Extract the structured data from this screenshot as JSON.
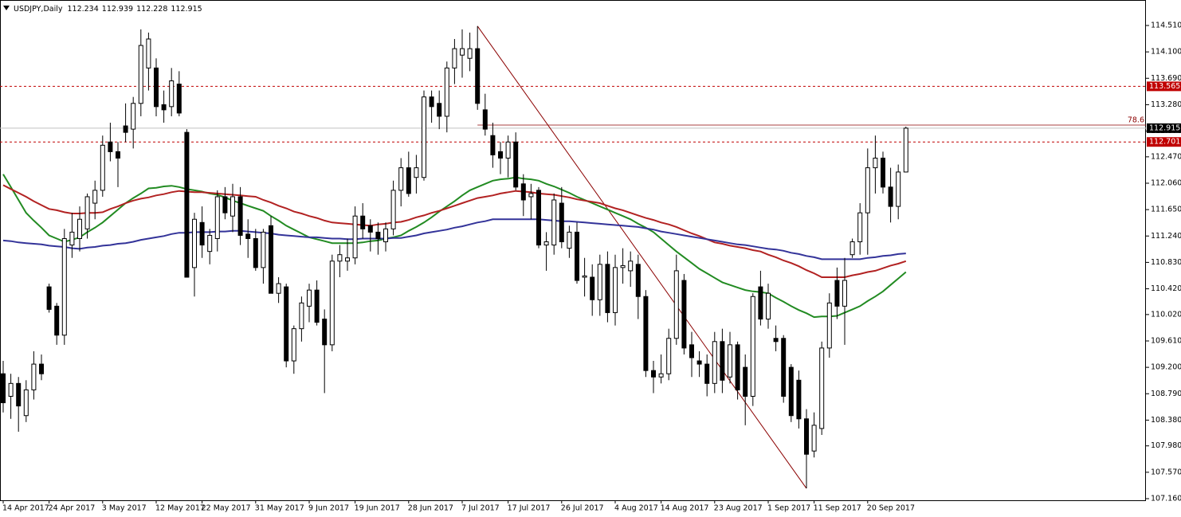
{
  "chart_data": {
    "type": "candlestick",
    "title": "USDJPY,Daily",
    "categories": [
      "14 Apr 2017",
      null,
      null,
      null,
      null,
      null,
      "24 Apr 2017",
      null,
      null,
      null,
      null,
      null,
      null,
      "3 May 2017",
      null,
      null,
      null,
      null,
      null,
      null,
      "12 May 2017",
      null,
      null,
      null,
      null,
      null,
      "22 May 2017",
      null,
      null,
      null,
      null,
      null,
      null,
      "31 May 2017",
      null,
      null,
      null,
      null,
      null,
      null,
      "9 Jun 2017",
      null,
      null,
      null,
      null,
      null,
      "19 Jun 2017",
      null,
      null,
      null,
      null,
      null,
      null,
      "28 Jun 2017",
      null,
      null,
      null,
      null,
      null,
      null,
      "7 Jul 2017",
      null,
      null,
      null,
      null,
      null,
      "17 Jul 2017",
      null,
      null,
      null,
      null,
      null,
      null,
      "26 Jul 2017",
      null,
      null,
      null,
      null,
      null,
      null,
      "4 Aug 2017",
      null,
      null,
      null,
      null,
      null,
      "14 Aug 2017",
      null,
      null,
      null,
      null,
      null,
      null,
      "23 Aug 2017",
      null,
      null,
      null,
      null,
      null,
      null,
      "1 Sep 2017",
      null,
      null,
      null,
      null,
      null,
      "11 Sep 2017",
      null,
      null,
      null,
      null,
      null,
      null,
      "20 Sep 2017",
      null,
      null,
      null,
      null,
      null
    ],
    "open": [
      109.1,
      108.75,
      108.95,
      108.45,
      108.85,
      109.25,
      110.45,
      110.15,
      109.7,
      111.1,
      111.2,
      111.35,
      111.75,
      111.95,
      112.7,
      112.55,
      112.95,
      112.9,
      113.3,
      113.85,
      113.85,
      113.28,
      113.25,
      113.6,
      112.85,
      110.75,
      111.45,
      111.0,
      111.2,
      111.85,
      111.55,
      111.85,
      111.27,
      111.2,
      110.75,
      111.4,
      110.35,
      110.45,
      109.3,
      109.8,
      110.15,
      110.4,
      109.95,
      109.55,
      110.85,
      110.85,
      110.9,
      111.55,
      111.4,
      111.3,
      111.15,
      111.35,
      111.95,
      112.3,
      112.15,
      112.15,
      113.4,
      113.3,
      113.1,
      113.85,
      114.05,
      114.0,
      114.15,
      113.2,
      112.8,
      112.55,
      112.45,
      112.7,
      112.05,
      111.85,
      111.95,
      111.1,
      111.1,
      111.75,
      111.05,
      111.3,
      110.6,
      110.6,
      110.25,
      110.8,
      110.05,
      110.75,
      110.7,
      110.8,
      110.3,
      109.15,
      109.05,
      109.1,
      109.65,
      110.55,
      109.55,
      109.3,
      109.25,
      108.95,
      109.6,
      109.05,
      109.55,
      109.2,
      108.75,
      110.45,
      109.95,
      109.65,
      109.65,
      109.2,
      109.0,
      108.4,
      107.9,
      108.25,
      109.5,
      110.55,
      110.15,
      110.95,
      111.15,
      111.6,
      112.3,
      112.45,
      112.0,
      111.7,
      112.234
    ],
    "high": [
      109.3,
      109.1,
      109.05,
      109.0,
      109.45,
      109.4,
      110.5,
      110.2,
      111.35,
      111.6,
      111.7,
      111.9,
      112.1,
      112.8,
      113.0,
      112.7,
      113.3,
      113.4,
      114.45,
      114.4,
      114.0,
      113.5,
      113.85,
      113.8,
      112.9,
      111.6,
      111.7,
      111.35,
      111.95,
      112.0,
      112.05,
      112.0,
      111.5,
      111.35,
      111.35,
      111.55,
      110.6,
      110.5,
      109.85,
      110.3,
      110.5,
      110.55,
      110.1,
      110.95,
      111.1,
      111.2,
      111.7,
      111.75,
      111.5,
      111.45,
      111.45,
      112.1,
      112.45,
      112.55,
      112.5,
      113.5,
      113.5,
      113.5,
      113.95,
      114.3,
      114.45,
      114.4,
      114.5,
      113.45,
      113.0,
      112.7,
      112.8,
      112.85,
      112.2,
      112.05,
      112.0,
      111.3,
      111.9,
      112.0,
      111.4,
      111.45,
      110.9,
      110.8,
      110.95,
      111.0,
      110.95,
      111.05,
      111.0,
      110.95,
      110.4,
      109.3,
      109.4,
      109.8,
      110.95,
      110.65,
      109.75,
      109.45,
      109.4,
      109.75,
      109.8,
      109.75,
      109.6,
      109.4,
      110.35,
      110.7,
      110.5,
      109.85,
      109.7,
      109.25,
      109.15,
      108.55,
      108.5,
      109.6,
      110.35,
      110.75,
      110.9,
      111.2,
      111.75,
      112.6,
      112.8,
      112.55,
      112.3,
      112.35,
      112.939
    ],
    "low": [
      108.5,
      108.4,
      108.2,
      108.35,
      108.7,
      109.0,
      110.05,
      109.55,
      109.55,
      110.9,
      111.0,
      111.2,
      111.5,
      111.85,
      112.4,
      112.0,
      112.7,
      112.6,
      113.1,
      113.5,
      113.1,
      113.0,
      113.1,
      113.1,
      110.6,
      110.3,
      110.9,
      110.8,
      111.0,
      111.5,
      111.3,
      111.1,
      110.9,
      110.7,
      110.5,
      110.35,
      110.2,
      109.2,
      109.1,
      109.6,
      109.9,
      109.85,
      108.8,
      109.45,
      110.6,
      110.7,
      110.8,
      111.2,
      111.0,
      110.95,
      111.0,
      111.25,
      111.7,
      111.85,
      111.9,
      112.1,
      113.0,
      112.9,
      112.85,
      113.6,
      113.7,
      113.8,
      113.2,
      112.8,
      112.3,
      112.2,
      112.15,
      111.95,
      111.55,
      111.5,
      111.05,
      110.7,
      110.95,
      111.05,
      110.9,
      110.5,
      110.3,
      110.0,
      110.0,
      109.9,
      109.85,
      110.5,
      110.45,
      109.95,
      109.05,
      108.8,
      108.95,
      109.0,
      109.55,
      109.4,
      109.05,
      109.05,
      108.75,
      108.8,
      108.8,
      108.95,
      108.7,
      108.3,
      108.6,
      109.85,
      109.8,
      109.45,
      108.65,
      108.35,
      108.25,
      107.32,
      107.8,
      108.15,
      109.35,
      109.95,
      109.55,
      110.9,
      110.95,
      110.95,
      111.9,
      111.9,
      111.45,
      111.5,
      112.228
    ],
    "close": [
      108.65,
      108.95,
      108.6,
      108.85,
      109.25,
      109.1,
      110.1,
      109.7,
      111.2,
      111.3,
      111.5,
      111.85,
      111.95,
      112.65,
      112.55,
      112.45,
      112.85,
      113.3,
      114.2,
      114.3,
      113.25,
      113.2,
      113.65,
      113.15,
      110.6,
      111.5,
      111.1,
      111.25,
      111.85,
      111.6,
      111.85,
      111.25,
      111.2,
      110.75,
      111.3,
      110.35,
      110.5,
      109.3,
      109.8,
      110.2,
      110.4,
      109.9,
      109.55,
      110.85,
      110.95,
      110.9,
      111.55,
      111.35,
      111.3,
      111.2,
      111.35,
      111.95,
      112.3,
      111.9,
      112.3,
      113.4,
      113.25,
      113.1,
      113.85,
      114.15,
      114.15,
      114.15,
      113.3,
      112.9,
      112.5,
      112.45,
      112.7,
      112.0,
      111.8,
      111.9,
      111.1,
      111.15,
      111.8,
      111.15,
      111.3,
      110.55,
      110.62,
      110.25,
      110.8,
      110.05,
      110.75,
      110.78,
      110.85,
      110.3,
      109.15,
      109.05,
      109.1,
      109.65,
      110.7,
      109.5,
      109.35,
      109.25,
      108.95,
      109.6,
      109.0,
      109.55,
      108.85,
      108.75,
      110.3,
      109.95,
      110.35,
      109.6,
      108.75,
      108.45,
      108.4,
      107.85,
      108.3,
      109.5,
      110.2,
      110.15,
      110.55,
      111.15,
      111.6,
      112.3,
      112.45,
      112.0,
      111.7,
      112.234,
      112.915
    ],
    "moving_averages": [
      {
        "color": "#228b22",
        "values": [
          112.2,
          112.0,
          111.8,
          111.6,
          111.48,
          111.37,
          111.25,
          111.2,
          111.15,
          111.18,
          111.22,
          111.3,
          111.37,
          111.45,
          111.55,
          111.65,
          111.75,
          111.83,
          111.9,
          111.98,
          111.99,
          112.01,
          112.02,
          112.0,
          111.97,
          111.95,
          111.93,
          111.9,
          111.88,
          111.84,
          111.79,
          111.75,
          111.71,
          111.67,
          111.63,
          111.55,
          111.48,
          111.4,
          111.34,
          111.28,
          111.22,
          111.19,
          111.16,
          111.13,
          111.13,
          111.13,
          111.13,
          111.14,
          111.16,
          111.17,
          111.2,
          111.22,
          111.25,
          111.32,
          111.38,
          111.45,
          111.53,
          111.62,
          111.7,
          111.78,
          111.87,
          111.95,
          112.0,
          112.05,
          112.1,
          112.12,
          112.13,
          112.15,
          112.13,
          112.12,
          112.1,
          112.05,
          112.01,
          111.96,
          111.91,
          111.85,
          111.8,
          111.75,
          111.7,
          111.65,
          111.6,
          111.55,
          111.5,
          111.43,
          111.37,
          111.3,
          111.2,
          111.1,
          111.0,
          110.91,
          110.82,
          110.73,
          110.66,
          110.59,
          110.52,
          110.48,
          110.44,
          110.4,
          110.38,
          110.37,
          110.35,
          110.28,
          110.22,
          110.15,
          110.09,
          110.04,
          109.98,
          109.99,
          109.99,
          110.0,
          110.05,
          110.1,
          110.15,
          110.23,
          110.3,
          110.38,
          110.48,
          110.58,
          110.68
        ]
      },
      {
        "color": "#b22222",
        "values": [
          112.03,
          111.97,
          111.91,
          111.85,
          111.78,
          111.72,
          111.66,
          111.64,
          111.61,
          111.59,
          111.59,
          111.6,
          111.6,
          111.61,
          111.66,
          111.7,
          111.75,
          111.79,
          111.82,
          111.84,
          111.87,
          111.89,
          111.92,
          111.94,
          111.93,
          111.92,
          111.92,
          111.91,
          111.9,
          111.89,
          111.88,
          111.87,
          111.86,
          111.85,
          111.8,
          111.76,
          111.71,
          111.67,
          111.62,
          111.59,
          111.55,
          111.52,
          111.48,
          111.45,
          111.44,
          111.43,
          111.42,
          111.41,
          111.4,
          111.42,
          111.43,
          111.45,
          111.46,
          111.49,
          111.53,
          111.56,
          111.6,
          111.63,
          111.67,
          111.71,
          111.75,
          111.79,
          111.83,
          111.85,
          111.87,
          111.9,
          111.92,
          111.94,
          111.93,
          111.92,
          111.9,
          111.89,
          111.88,
          111.86,
          111.84,
          111.81,
          111.79,
          111.77,
          111.75,
          111.71,
          111.67,
          111.64,
          111.6,
          111.56,
          111.52,
          111.49,
          111.45,
          111.42,
          111.38,
          111.33,
          111.28,
          111.24,
          111.19,
          111.14,
          111.12,
          111.09,
          111.07,
          111.05,
          111.02,
          111.0,
          110.95,
          110.91,
          110.86,
          110.82,
          110.77,
          110.71,
          110.66,
          110.6,
          110.6,
          110.6,
          110.6,
          110.63,
          110.65,
          110.68,
          110.7,
          110.74,
          110.78,
          110.81,
          110.85
        ]
      },
      {
        "color": "#333399",
        "values": [
          111.17,
          111.16,
          111.14,
          111.13,
          111.12,
          111.11,
          111.09,
          111.08,
          111.07,
          111.05,
          111.04,
          111.06,
          111.07,
          111.09,
          111.1,
          111.12,
          111.13,
          111.15,
          111.18,
          111.2,
          111.22,
          111.24,
          111.27,
          111.29,
          111.29,
          111.3,
          111.3,
          111.3,
          111.31,
          111.31,
          111.32,
          111.32,
          111.31,
          111.3,
          111.29,
          111.28,
          111.26,
          111.25,
          111.24,
          111.23,
          111.22,
          111.22,
          111.21,
          111.2,
          111.2,
          111.19,
          111.19,
          111.2,
          111.2,
          111.2,
          111.2,
          111.21,
          111.21,
          111.23,
          111.25,
          111.28,
          111.3,
          111.32,
          111.34,
          111.37,
          111.39,
          111.42,
          111.45,
          111.47,
          111.5,
          111.5,
          111.5,
          111.5,
          111.5,
          111.5,
          111.5,
          111.49,
          111.48,
          111.47,
          111.47,
          111.46,
          111.45,
          111.44,
          111.43,
          111.42,
          111.41,
          111.4,
          111.39,
          111.38,
          111.36,
          111.34,
          111.31,
          111.29,
          111.27,
          111.25,
          111.23,
          111.21,
          111.19,
          111.17,
          111.15,
          111.13,
          111.11,
          111.1,
          111.08,
          111.06,
          111.04,
          111.03,
          111.01,
          110.98,
          110.96,
          110.93,
          110.91,
          110.88,
          110.88,
          110.88,
          110.88,
          110.88,
          110.88,
          110.9,
          110.91,
          110.93,
          110.94,
          110.96,
          110.97
        ]
      }
    ],
    "ylim": [
      107.135,
      114.906
    ],
    "yticks": [
      {
        "value": 114.51,
        "label": "114.510"
      },
      {
        "value": 114.1,
        "label": "114.100"
      },
      {
        "value": 113.69,
        "label": "113.690"
      },
      {
        "value": 113.28,
        "label": "113.280"
      },
      {
        "value": 112.87,
        "label": "112.870"
      },
      {
        "value": 112.47,
        "label": "112.470"
      },
      {
        "value": 112.06,
        "label": "112.060"
      },
      {
        "value": 111.65,
        "label": "111.650"
      },
      {
        "value": 111.24,
        "label": "111.240"
      },
      {
        "value": 110.83,
        "label": "110.830"
      },
      {
        "value": 110.42,
        "label": "110.420"
      },
      {
        "value": 110.02,
        "label": "110.020"
      },
      {
        "value": 109.61,
        "label": "109.610"
      },
      {
        "value": 109.2,
        "label": "109.200"
      },
      {
        "value": 108.79,
        "label": "108.790"
      },
      {
        "value": 108.38,
        "label": "108.380"
      },
      {
        "value": 107.98,
        "label": "107.980"
      },
      {
        "value": 107.57,
        "label": "107.570"
      },
      {
        "value": 107.16,
        "label": "107.160"
      }
    ],
    "levels": [
      {
        "value": 113.565,
        "color": "#c00000"
      },
      {
        "value": 112.701,
        "color": "#c00000"
      }
    ],
    "fibonacci": {
      "level": 78.6,
      "color": "#8b0000"
    },
    "current_price_color": "#c0c0c0",
    "up_color": "#ffffff",
    "down_color": "#000000",
    "grid": false
  }
}
